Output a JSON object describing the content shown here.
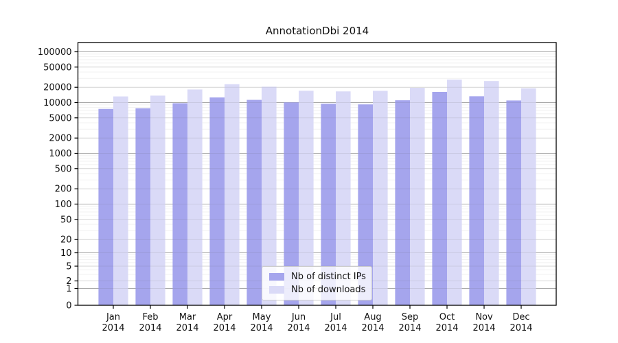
{
  "chart_data": {
    "type": "bar",
    "title": "AnnotationDbi 2014",
    "year_label": "2014",
    "categories": [
      "Jan",
      "Feb",
      "Mar",
      "Apr",
      "May",
      "Jun",
      "Jul",
      "Aug",
      "Sep",
      "Oct",
      "Nov",
      "Dec"
    ],
    "series": [
      {
        "name": "Nb of distinct IPs",
        "color": "#a5a5ed",
        "values": [
          7500,
          7700,
          9700,
          12600,
          11300,
          10100,
          9500,
          9200,
          11100,
          16200,
          13300,
          11000
        ]
      },
      {
        "name": "Nb of downloads",
        "color": "#dadaf7",
        "values": [
          13200,
          13700,
          18100,
          23000,
          20500,
          17100,
          16600,
          17000,
          19500,
          28400,
          26500,
          19100
        ]
      }
    ],
    "xlabel": "",
    "ylabel": "",
    "yscale": "symlog",
    "yticks": [
      100000,
      50000,
      20000,
      10000,
      5000,
      2000,
      1000,
      500,
      200,
      100,
      50,
      20,
      10,
      5,
      2,
      1,
      0
    ],
    "ylim": [
      0,
      152000
    ],
    "grid": true,
    "legend_position": "lower center"
  },
  "colors": {
    "major_gridline": "#b5b5b5",
    "labeled_gridline": "#e6e6e6",
    "minor_gridline": "#f1f1f1",
    "spine": "#000000",
    "text": "#111111"
  }
}
